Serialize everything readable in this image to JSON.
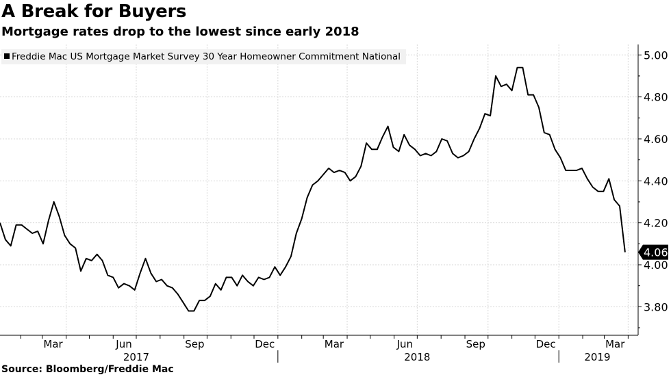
{
  "title": "A Break for Buyers",
  "subtitle": "Mortgage rates drop to the lowest since early 2018",
  "source": "Source: Bloomberg/Freddie Mac",
  "chart_data": {
    "type": "line",
    "legend": {
      "position": "top-left",
      "entries": [
        "Freddie Mac US Mortgage Market Survey 30 Year Homeowner Commitment National"
      ]
    },
    "ylim": [
      3.7,
      5.05
    ],
    "y_ticks": [
      "3.80",
      "4.00",
      "4.20",
      "4.40",
      "4.60",
      "4.80",
      "5.00"
    ],
    "y_axis_side": "right",
    "x_range": [
      "2017-01-05",
      "2019-04-14"
    ],
    "x_month_labels": [
      {
        "label": "Mar",
        "date": "2017-03-15"
      },
      {
        "label": "Jun",
        "date": "2017-06-15"
      },
      {
        "label": "Sep",
        "date": "2017-09-15"
      },
      {
        "label": "Dec",
        "date": "2017-12-15"
      },
      {
        "label": "Mar",
        "date": "2018-03-15"
      },
      {
        "label": "Jun",
        "date": "2018-06-15"
      },
      {
        "label": "Sep",
        "date": "2018-09-15"
      },
      {
        "label": "Dec",
        "date": "2018-12-15"
      },
      {
        "label": "Mar",
        "date": "2019-03-15"
      }
    ],
    "x_year_labels": [
      {
        "label": "2017",
        "date": "2017-07-01"
      },
      {
        "label": "2018",
        "date": "2018-07-01"
      },
      {
        "label": "2019",
        "date": "2019-02-20"
      }
    ],
    "grid": true,
    "last_value_label": "4.06",
    "line_color": "#000000",
    "series": [
      {
        "name": "Freddie Mac US Mortgage Market Survey 30 Year Homeowner Commitment National",
        "start": "2017-01-05",
        "interval_days": 7,
        "values": [
          4.2,
          4.12,
          4.09,
          4.19,
          4.19,
          4.17,
          4.15,
          4.16,
          4.1,
          4.21,
          4.3,
          4.23,
          4.14,
          4.1,
          4.08,
          3.97,
          4.03,
          4.02,
          4.05,
          4.02,
          3.95,
          3.94,
          3.89,
          3.91,
          3.9,
          3.88,
          3.96,
          4.03,
          3.96,
          3.92,
          3.93,
          3.9,
          3.89,
          3.86,
          3.82,
          3.78,
          3.78,
          3.83,
          3.83,
          3.85,
          3.91,
          3.88,
          3.94,
          3.94,
          3.9,
          3.95,
          3.92,
          3.9,
          3.94,
          3.93,
          3.94,
          3.99,
          3.95,
          3.99,
          4.04,
          4.15,
          4.22,
          4.32,
          4.38,
          4.4,
          4.43,
          4.46,
          4.44,
          4.45,
          4.44,
          4.4,
          4.42,
          4.47,
          4.58,
          4.55,
          4.55,
          4.61,
          4.66,
          4.56,
          4.54,
          4.62,
          4.57,
          4.55,
          4.52,
          4.53,
          4.52,
          4.54,
          4.6,
          4.59,
          4.53,
          4.51,
          4.52,
          4.54,
          4.6,
          4.65,
          4.72,
          4.71,
          4.9,
          4.85,
          4.86,
          4.83,
          4.94,
          4.94,
          4.81,
          4.81,
          4.75,
          4.63,
          4.62,
          4.55,
          4.51,
          4.45,
          4.45,
          4.45,
          4.46,
          4.41,
          4.37,
          4.35,
          4.35,
          4.41,
          4.31,
          4.28,
          4.06
        ]
      }
    ]
  }
}
